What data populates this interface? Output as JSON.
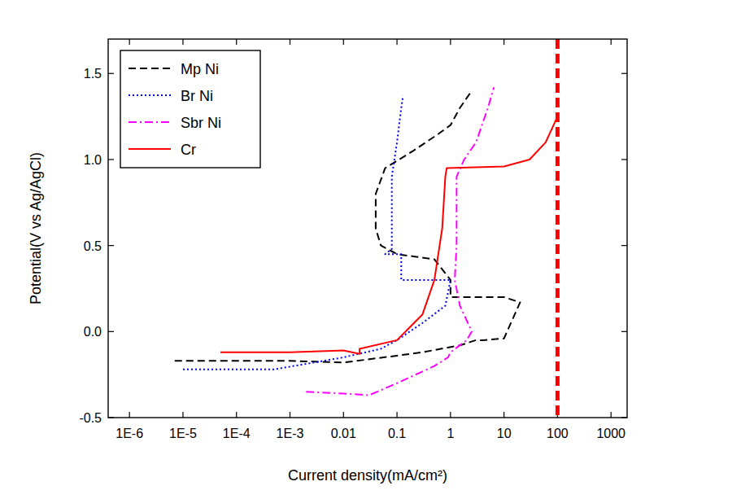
{
  "chart_data": {
    "type": "line",
    "log": "x",
    "x_label": "Current density(mA/cm²)",
    "y_label": "Potential(V vs Ag/AgCl)",
    "xlim": [
      4e-07,
      2000
    ],
    "ylim": [
      -0.5,
      1.7
    ],
    "xticks": [
      {
        "value": 1e-06,
        "label": "1E-6"
      },
      {
        "value": 1e-05,
        "label": "1E-5"
      },
      {
        "value": 0.0001,
        "label": "1E-4"
      },
      {
        "value": 0.001,
        "label": "1E-3"
      },
      0.01,
      0.1,
      1,
      10,
      100,
      1000
    ],
    "yticks": [
      -0.5,
      {
        "value": 0,
        "label": "0.0"
      },
      0.5,
      {
        "value": 1,
        "label": "1.0"
      },
      1.5
    ],
    "legend": "upper-left",
    "series": [
      {
        "name": "Mp Ni",
        "color": "#000000",
        "line_style": "dashed",
        "x": [
          7e-06,
          0.0001,
          0.001,
          0.01,
          0.1,
          0.3,
          1.5,
          3,
          4,
          10,
          20,
          10,
          1,
          1,
          0.5,
          0.1,
          0.05,
          0.04,
          0.04,
          0.06,
          0.2,
          0.6,
          1,
          1.5,
          2.5
        ],
        "values": [
          -0.17,
          -0.17,
          -0.17,
          -0.18,
          -0.14,
          -0.12,
          -0.08,
          -0.05,
          -0.05,
          -0.04,
          0.17,
          0.2,
          0.2,
          0.3,
          0.42,
          0.45,
          0.5,
          0.6,
          0.8,
          0.95,
          1.05,
          1.15,
          1.2,
          1.3,
          1.4
        ]
      },
      {
        "name": "Br Ni",
        "color": "#0000ff",
        "line_style": "dotted",
        "x": [
          1e-05,
          0.0001,
          0.0005,
          0.01,
          0.05,
          0.1,
          0.3,
          0.8,
          1,
          0.12,
          0.12,
          0.06,
          0.08,
          0.08,
          0.1,
          0.12,
          0.13
        ],
        "values": [
          -0.22,
          -0.22,
          -0.22,
          -0.15,
          -0.1,
          -0.05,
          0.05,
          0.15,
          0.3,
          0.3,
          0.45,
          0.45,
          0.48,
          0.9,
          1.1,
          1.3,
          1.37
        ]
      },
      {
        "name": "Sbr Ni",
        "color": "#ff00ff",
        "line_style": "dashdot",
        "x": [
          0.002,
          0.01,
          0.03,
          0.1,
          0.5,
          0.9,
          1,
          2,
          2.5,
          1.5,
          1.2,
          1.3,
          1.3,
          1.8,
          3,
          5,
          6.5
        ],
        "values": [
          -0.35,
          -0.36,
          -0.37,
          -0.3,
          -0.2,
          -0.15,
          -0.12,
          -0.05,
          0,
          0.15,
          0.3,
          0.5,
          0.9,
          1.0,
          1.1,
          1.3,
          1.42
        ]
      },
      {
        "name": "Cr",
        "color": "#ff0000",
        "line_style": "solid",
        "x": [
          5e-05,
          0.001,
          0.01,
          0.02,
          0.02,
          0.1,
          0.3,
          0.5,
          0.7,
          0.8,
          0.85,
          10,
          30,
          60,
          100
        ],
        "values": [
          -0.12,
          -0.12,
          -0.11,
          -0.13,
          -0.1,
          -0.05,
          0.1,
          0.3,
          0.6,
          0.9,
          0.95,
          0.96,
          1.0,
          1.1,
          1.25
        ]
      }
    ],
    "x_line": {
      "value": 100,
      "color": "#ff0000",
      "line_style": "dashed"
    }
  }
}
